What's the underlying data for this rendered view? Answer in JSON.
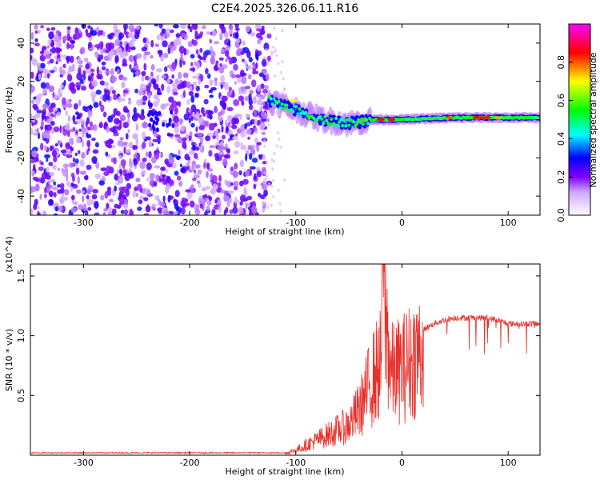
{
  "chart_data": [
    {
      "type": "heatmap",
      "title": "C2E4.2025.326.06.11.R16",
      "xlabel": "Height of straight line (km)",
      "ylabel": "Frequency (Hz)",
      "xlim": [
        -350,
        130
      ],
      "ylim": [
        -50,
        50
      ],
      "xticks": [
        -300,
        -200,
        -100,
        0,
        100
      ],
      "yticks": [
        -40,
        -20,
        0,
        20,
        40
      ],
      "colorbar": {
        "label": "Normalized spectral amplitude",
        "range": [
          0.0,
          1.0
        ],
        "ticks": [
          0.0,
          0.2,
          0.4,
          0.6,
          0.8
        ],
        "colormap": [
          "#ffffff",
          "#8000ff",
          "#0000ff",
          "#00ffff",
          "#00ff00",
          "#ffff00",
          "#ff0000",
          "#ff00ff"
        ]
      },
      "regions": [
        {
          "description": "noise",
          "x": [
            -350,
            -125
          ],
          "y": [
            -50,
            50
          ],
          "amplitude": 0.15
        },
        {
          "description": "signal ridge",
          "x": [
            -125,
            130
          ],
          "center_freq": [
            [
              -125,
              10
            ],
            [
              -100,
              5
            ],
            [
              -75,
              0
            ],
            [
              -50,
              -2
            ],
            [
              -25,
              0
            ],
            [
              0,
              0
            ],
            [
              50,
              1
            ],
            [
              100,
              1
            ],
            [
              130,
              1
            ]
          ],
          "amplitude": 0.9
        }
      ]
    },
    {
      "type": "line",
      "xlabel": "Height of straight line (km)",
      "ylabel": "SNR (10 * v/v)",
      "multiplier": "(x10^4)",
      "xlim": [
        -350,
        130
      ],
      "ylim": [
        0,
        1.6
      ],
      "xticks": [
        -300,
        -200,
        -100,
        0,
        100
      ],
      "yticks": [
        0.5,
        1.0,
        1.5
      ],
      "color": "#e8302a",
      "series": [
        {
          "name": "SNR",
          "x": [
            -350,
            -110,
            -100,
            -90,
            -80,
            -70,
            -60,
            -50,
            -40,
            -30,
            -20,
            -18,
            -10,
            0,
            10,
            20,
            30,
            40,
            50,
            60,
            70,
            80,
            90,
            100,
            110,
            120,
            130
          ],
          "values": [
            0.02,
            0.02,
            0.05,
            0.1,
            0.15,
            0.2,
            0.25,
            0.3,
            0.45,
            0.7,
            0.9,
            1.6,
            0.8,
            0.85,
            0.95,
            1.05,
            1.1,
            1.13,
            1.15,
            1.15,
            1.15,
            1.15,
            1.13,
            1.1,
            1.1,
            1.1,
            1.1
          ]
        }
      ]
    }
  ]
}
